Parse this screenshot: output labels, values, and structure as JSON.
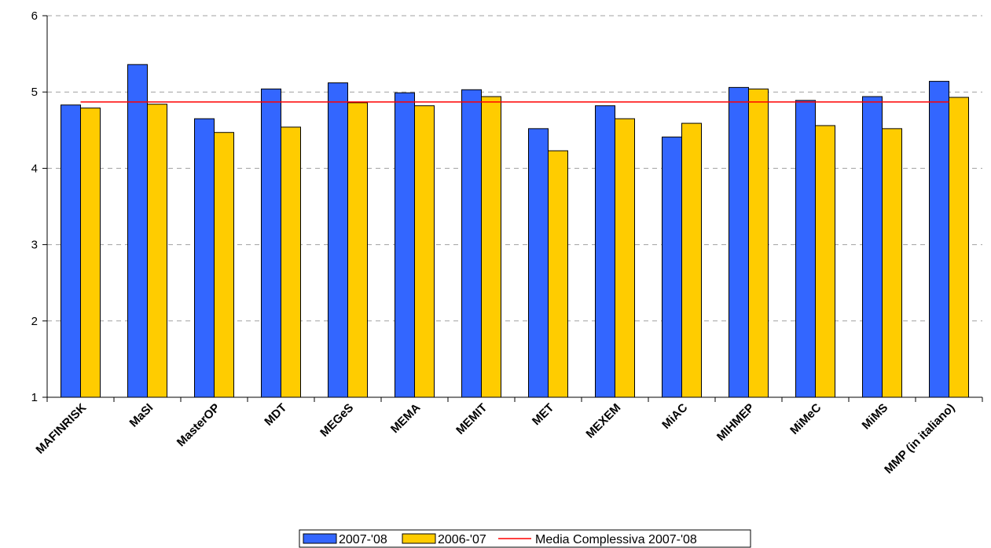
{
  "chart_data": {
    "type": "bar",
    "categories": [
      "MAFINRISK",
      "MaSI",
      "MasterOP",
      "MDT",
      "MEGeS",
      "MEMA",
      "MEMIT",
      "MET",
      "MEXEM",
      "MiAC",
      "MIHMEP",
      "MiMeC",
      "MiMS",
      "MMP (in italiano)"
    ],
    "series": [
      {
        "name": "2007-'08",
        "color": "#3366FF",
        "values": [
          4.83,
          5.36,
          4.65,
          5.04,
          5.12,
          4.99,
          5.03,
          4.52,
          4.82,
          4.41,
          5.06,
          4.89,
          4.94,
          5.14
        ]
      },
      {
        "name": "2006-'07",
        "color": "#FFCC00",
        "values": [
          4.79,
          4.84,
          4.47,
          4.54,
          4.86,
          4.82,
          4.94,
          4.23,
          4.65,
          4.59,
          5.04,
          4.56,
          4.52,
          4.93
        ]
      }
    ],
    "reference_line": {
      "name": "Media Complessiva 2007-'08",
      "value": 4.87,
      "color": "#FF0000"
    },
    "ylim": [
      1,
      6
    ],
    "yticks": [
      "1",
      "2",
      "3",
      "4",
      "5",
      "6"
    ],
    "grid": "horizontal dashed",
    "legend_position": "bottom",
    "title": "",
    "xlabel": "",
    "ylabel": ""
  }
}
